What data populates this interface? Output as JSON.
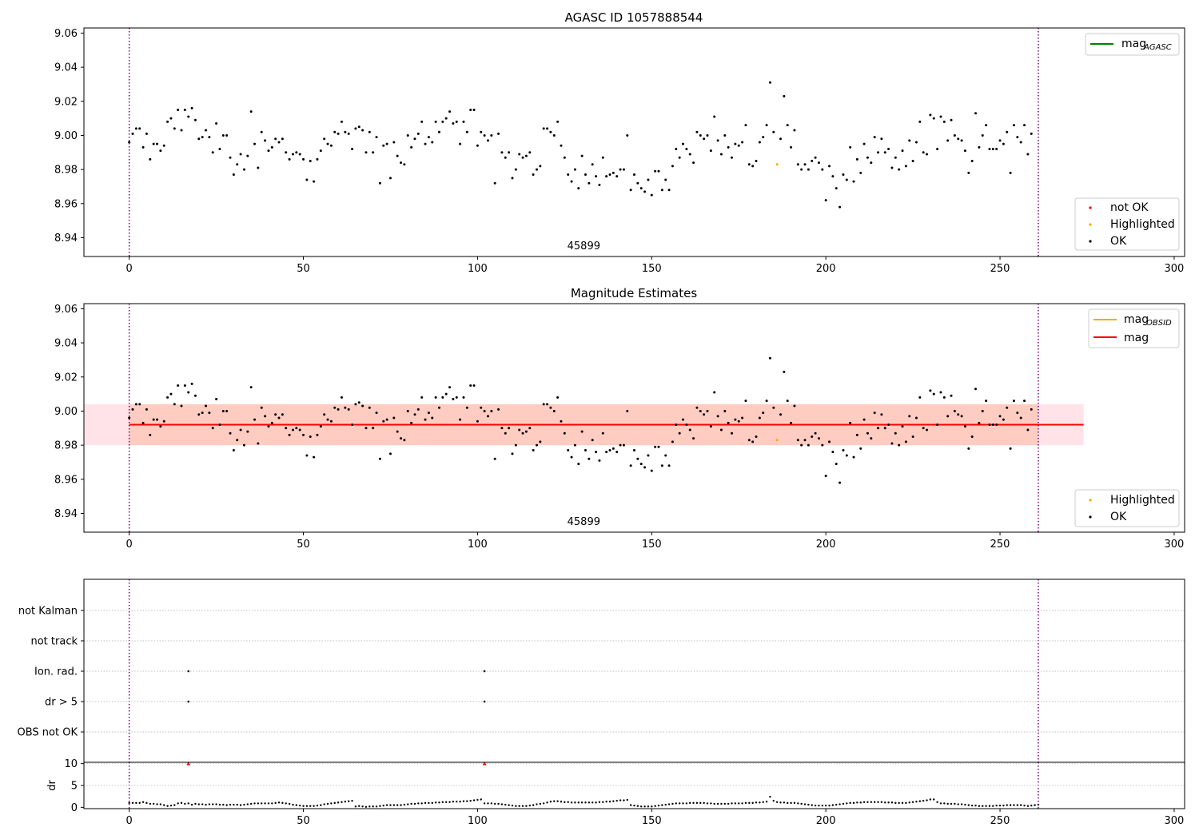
{
  "chart_data": [
    {
      "panel": "agasc",
      "type": "scatter",
      "title": "AGASC ID 1057888544",
      "xlim": [
        -13,
        303
      ],
      "ylim": [
        8.929,
        9.063
      ],
      "xticks": [
        "0",
        "50",
        "100",
        "150",
        "200",
        "250",
        "300"
      ],
      "yticks": [
        "8.94",
        "8.96",
        "8.98",
        "9.00",
        "9.02",
        "9.04",
        "9.06"
      ],
      "vlines": [
        0,
        261
      ],
      "annotation": {
        "text": "45899",
        "x": 130.5
      },
      "legend_lines": [
        {
          "label": "mag",
          "sub": "AGASC",
          "color": "#008000"
        }
      ],
      "legend_points": [
        {
          "label": "not OK",
          "color": "#ff0000"
        },
        {
          "label": "Highlighted",
          "color": "#ffa500"
        },
        {
          "label": "OK",
          "color": "#000000"
        }
      ],
      "highlighted": [
        [
          186,
          9.031
        ]
      ],
      "series": [
        {
          "name": "OK",
          "x_start": 0,
          "values": [
            8.996,
            9.001,
            9.004,
            9.004,
            8.993,
            9.001,
            8.986,
            8.995,
            8.995,
            8.991,
            8.994,
            9.008,
            9.01,
            9.004,
            9.015,
            9.003,
            9.015,
            9.011,
            9.016,
            9.009,
            8.998,
            8.999,
            9.003,
            8.999,
            8.99,
            9.007,
            8.992,
            9.0,
            9.0,
            8.987,
            8.977,
            8.983,
            8.989,
            8.98,
            8.988,
            9.014,
            8.995,
            8.981,
            9.002,
            8.997,
            8.991,
            8.993,
            8.998,
            8.996,
            8.998,
            8.99,
            8.986,
            8.989,
            8.99,
            8.989,
            8.986,
            8.974,
            8.985,
            8.973,
            8.986,
            8.991,
            8.998,
            8.995,
            8.994,
            9.002,
            9.001,
            9.008,
            9.002,
            9.001,
            8.992,
            9.004,
            9.005,
            9.003,
            8.99,
            9.002,
            8.99,
            8.999,
            8.972,
            8.994,
            8.995,
            8.975,
            8.996,
            8.988,
            8.984,
            8.983,
            9.0,
            8.993,
            8.998,
            9.001,
            9.008,
            8.995,
            8.999,
            8.996,
            9.008,
            9.002,
            9.008,
            9.01,
            9.014,
            9.007,
            9.008,
            8.995,
            9.008,
            9.002,
            9.015,
            9.015,
            8.994,
            9.002,
            9.0,
            8.997,
            9.0,
            8.972,
            9.001,
            8.99,
            8.987,
            8.99,
            8.975,
            8.98,
            8.989,
            8.987,
            8.988,
            8.99,
            8.977,
            8.98,
            8.982,
            9.004,
            9.004,
            9.002,
            9.0,
            9.008,
            8.994,
            8.987,
            8.977,
            8.973,
            8.98,
            8.969,
            8.988,
            8.977,
            8.972,
            8.983,
            8.976,
            8.971,
            8.987,
            8.976,
            8.977,
            8.978,
            8.976,
            8.98,
            8.98,
            9.0,
            8.968,
            8.977,
            8.972,
            8.969,
            8.967,
            8.974,
            8.965,
            8.979,
            8.979,
            8.968,
            8.974,
            8.968,
            8.982,
            8.992,
            8.987,
            8.995,
            8.992,
            8.989,
            8.984,
            9.002,
            9.0,
            8.998,
            9.0,
            8.991,
            9.011,
            8.997,
            8.989,
            9.0,
            8.993,
            8.987,
            8.995,
            8.994,
            8.996,
            9.006,
            8.983,
            8.982,
            8.985,
            8.996,
            8.999,
            9.006,
            9.031,
            9.002,
            8.983,
            8.998,
            9.023,
            9.006,
            8.993,
            9.003,
            8.983,
            8.98,
            8.983,
            8.98,
            8.985,
            8.987,
            8.984,
            8.98,
            8.962,
            8.982,
            8.976,
            8.969,
            8.958,
            8.977,
            8.974,
            8.993,
            8.973,
            8.986,
            8.978,
            8.995,
            8.987,
            8.984,
            8.999,
            8.99,
            8.998,
            8.99,
            8.992,
            8.981,
            8.987,
            8.98,
            8.991,
            8.982,
            8.997,
            8.985,
            8.996,
            9.008,
            8.99,
            8.989,
            9.012,
            9.01,
            8.992,
            9.011,
            9.008,
            8.997,
            9.009,
            9.0,
            8.998,
            8.997,
            8.991,
            8.978,
            8.985,
            9.013,
            8.993,
            9.0,
            9.006,
            8.992,
            8.992,
            8.992,
            8.997,
            8.995,
            9.002,
            8.978,
            9.006,
            8.999,
            8.996,
            9.006,
            8.989,
            9.001
          ]
        }
      ]
    },
    {
      "panel": "estimates",
      "type": "scatter",
      "title": "Magnitude Estimates",
      "xlim": [
        -13,
        303
      ],
      "ylim": [
        8.929,
        9.063
      ],
      "xticks": [
        "0",
        "50",
        "100",
        "150",
        "200",
        "250",
        "300"
      ],
      "yticks": [
        "8.94",
        "8.96",
        "8.98",
        "9.00",
        "9.02",
        "9.04",
        "9.06"
      ],
      "vlines": [
        0,
        261
      ],
      "annotation": {
        "text": "45899",
        "x": 130.5
      },
      "mag_line": 8.992,
      "band_outer": [
        8.98,
        9.004
      ],
      "band_inner": [
        8.98,
        9.004
      ],
      "band_inner_x": [
        0,
        261
      ],
      "band_outer_x": [
        -13,
        274
      ],
      "legend_lines": [
        {
          "label": "mag",
          "sub": "OBSID",
          "color": "#ffa500"
        },
        {
          "label": "mag",
          "sub": "",
          "color": "#ff0000"
        }
      ],
      "legend_points": [
        {
          "label": "Highlighted",
          "color": "#ffa500"
        },
        {
          "label": "OK",
          "color": "#000000"
        }
      ],
      "highlighted": [
        [
          186,
          9.031
        ]
      ]
    },
    {
      "panel": "flags",
      "type": "scatter",
      "xlim": [
        -13,
        303
      ],
      "categories": [
        "not Kalman",
        "not track",
        "Ion. rad.",
        "dr > 5",
        "OBS not OK"
      ],
      "flag_points": [
        {
          "category": "Ion. rad.",
          "x": [
            17,
            102
          ]
        },
        {
          "category": "dr > 5",
          "x": [
            17,
            102
          ]
        }
      ]
    },
    {
      "panel": "dr",
      "type": "scatter",
      "ylabel": "dr",
      "xlim": [
        -13,
        303
      ],
      "ylim": [
        -0.3,
        10.3
      ],
      "yticks": [
        "0",
        "5",
        "10"
      ],
      "xticks": [
        "0",
        "50",
        "100",
        "150",
        "200",
        "250",
        "300"
      ],
      "outliers": [
        [
          17,
          10
        ],
        [
          102,
          10
        ]
      ],
      "dr_values": [
        1.0,
        1.0,
        1.0,
        1.0,
        1.2,
        1.0,
        0.8,
        0.8,
        0.7,
        0.7,
        0.5,
        0.3,
        0.4,
        0.5,
        0.9,
        1.0,
        0.8,
        0.9,
        0.6,
        0.8,
        0.7,
        0.7,
        0.6,
        0.7,
        0.7,
        0.7,
        0.6,
        0.6,
        0.5,
        0.6,
        0.6,
        0.6,
        0.5,
        0.6,
        0.7,
        0.8,
        0.9,
        0.9,
        0.9,
        0.9,
        0.9,
        0.9,
        1.0,
        1.1,
        1.0,
        0.9,
        0.8,
        0.6,
        0.5,
        0.4,
        0.3,
        0.3,
        0.3,
        0.3,
        0.4,
        0.5,
        0.7,
        0.8,
        0.9,
        1.0,
        1.1,
        1.2,
        1.3,
        1.4,
        1.5,
        0.2,
        0.3,
        0.2,
        0.1,
        0.2,
        0.2,
        0.2,
        0.3,
        0.4,
        0.5,
        0.5,
        0.5,
        0.5,
        0.5,
        0.6,
        0.7,
        0.8,
        0.8,
        0.9,
        0.9,
        1.0,
        1.0,
        1.0,
        1.1,
        1.1,
        1.2,
        1.2,
        1.2,
        1.3,
        1.3,
        1.3,
        1.4,
        1.4,
        1.5,
        1.6,
        1.7,
        1.8,
        0.9,
        0.9,
        0.9,
        0.8,
        0.8,
        0.7,
        0.6,
        0.5,
        0.4,
        0.3,
        0.3,
        0.3,
        0.3,
        0.4,
        0.5,
        0.7,
        0.8,
        0.9,
        1.1,
        1.3,
        1.4,
        1.4,
        1.3,
        1.2,
        1.2,
        1.1,
        1.1,
        1.1,
        1.1,
        1.1,
        1.1,
        1.1,
        1.1,
        1.2,
        1.2,
        1.3,
        1.3,
        1.4,
        1.5,
        1.6,
        1.6,
        1.7,
        0.5,
        0.4,
        0.3,
        0.2,
        0.2,
        0.2,
        0.2,
        0.3,
        0.4,
        0.5,
        0.6,
        0.7,
        0.8,
        0.9,
        0.9,
        0.9,
        0.9,
        1.0,
        1.0,
        1.0,
        1.0,
        1.0,
        0.9,
        0.9,
        0.8,
        0.8,
        0.8,
        0.8,
        0.8,
        0.9,
        0.9,
        0.9,
        0.9,
        1.0,
        1.0,
        1.0,
        1.1,
        1.1,
        1.2,
        1.3,
        2.4,
        1.5,
        1.2,
        1.1,
        1.1,
        1.0,
        1.0,
        1.0,
        0.9,
        0.8,
        0.7,
        0.6,
        0.5,
        0.4,
        0.4,
        0.4,
        0.4,
        0.4,
        0.5,
        0.6,
        0.7,
        0.8,
        0.9,
        1.0,
        1.0,
        1.1,
        1.1,
        1.2,
        1.2,
        1.2,
        1.2,
        1.2,
        1.2,
        1.1,
        1.1,
        1.1,
        1.0,
        1.0,
        1.0,
        1.0,
        1.1,
        1.2,
        1.3,
        1.4,
        1.5,
        1.6,
        1.8,
        1.8,
        1.2,
        0.9,
        0.9,
        0.8,
        0.8,
        0.8,
        0.7,
        0.7,
        0.6,
        0.5,
        0.4,
        0.4,
        0.3,
        0.3,
        0.3,
        0.3,
        0.3,
        0.4,
        0.4,
        0.4,
        0.5,
        0.5,
        0.5,
        0.5,
        0.5,
        0.4,
        0.3,
        0.4,
        0.5,
        0.6
      ]
    }
  ]
}
